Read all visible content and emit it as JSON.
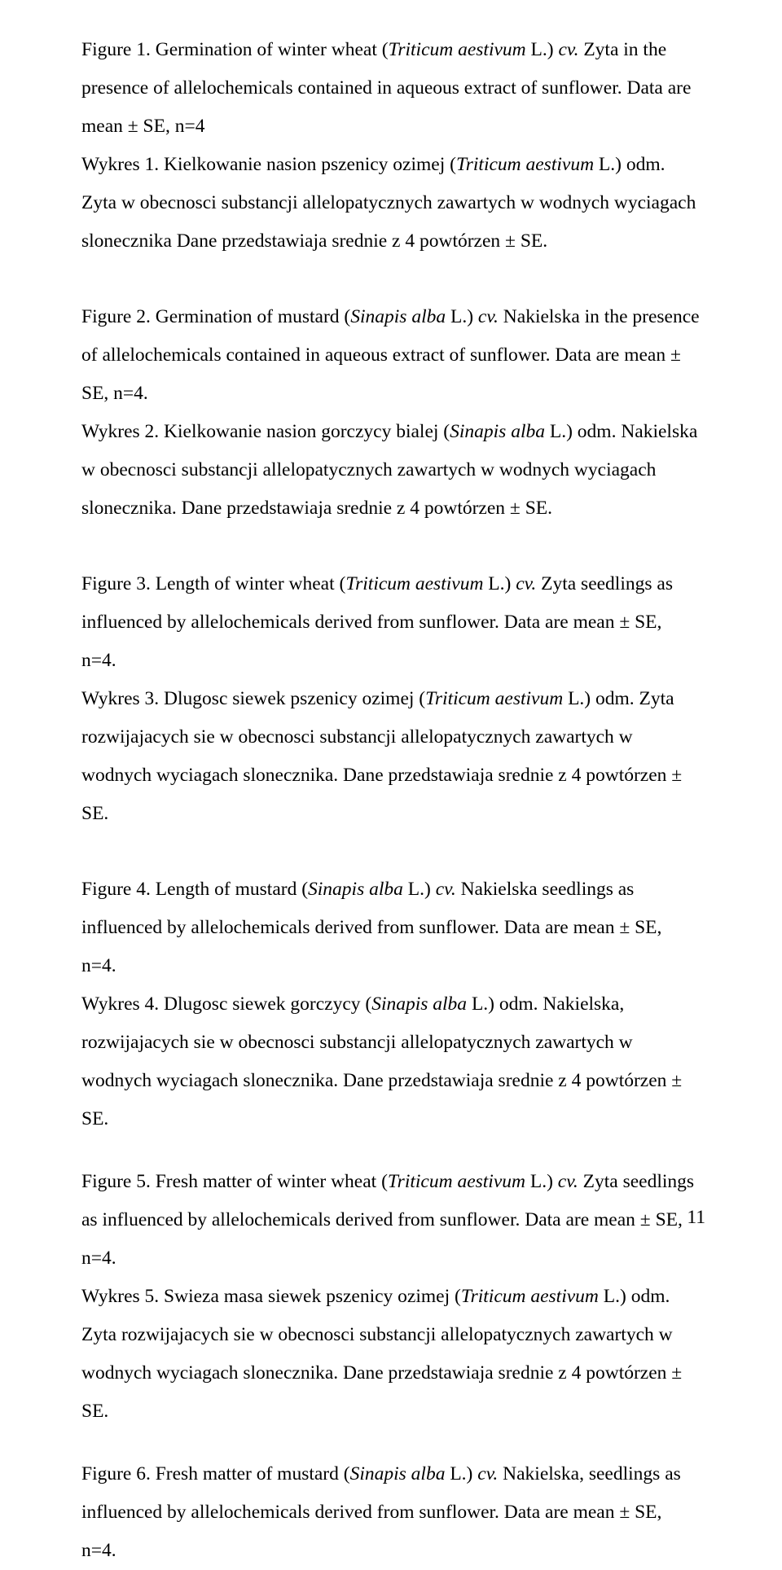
{
  "page_number": "11",
  "typography": {
    "font_family": "Times New Roman",
    "font_size_pt": 12,
    "line_spacing": 2.0,
    "color": "#000000",
    "background": "#ffffff"
  },
  "captions": [
    {
      "id": "fig1",
      "segments": [
        {
          "t": "Figure 1. Germination of winter wheat ("
        },
        {
          "t": "Triticum aestivum",
          "i": true
        },
        {
          "t": " L.) "
        },
        {
          "t": "cv.",
          "i": true
        },
        {
          "t": " Zyta in the presence of allelochemicals contained in aqueous extract of sunflower. Data are mean ± SE, n=4\nWykres 1. Kielkowanie nasion pszenicy ozimej ("
        },
        {
          "t": "Triticum aestivum",
          "i": true
        },
        {
          "t": " L.) odm. Zyta w obecnosci substancji allelopatycznych zawartych w wodnych wyciagach slonecznika Dane przedstawiaja srednie z 4 powtórzen ± SE."
        }
      ]
    },
    {
      "id": "fig2",
      "segments": [
        {
          "t": "Figure 2. Germination of mustard ("
        },
        {
          "t": "Sinapis alba",
          "i": true
        },
        {
          "t": " L.) "
        },
        {
          "t": "cv.",
          "i": true
        },
        {
          "t": " Nakielska in the presence of allelochemicals contained in aqueous extract of sunflower. Data are mean ± SE, n=4.\nWykres 2. Kielkowanie nasion gorczycy bialej ("
        },
        {
          "t": "Sinapis alba",
          "i": true
        },
        {
          "t": " L.) odm. Nakielska w obecnosci substancji allelopatycznych zawartych w wodnych wyciagach slonecznika. Dane przedstawiaja srednie z 4 powtórzen ± SE."
        }
      ]
    },
    {
      "id": "fig3",
      "segments": [
        {
          "t": "Figure 3. Length of winter wheat ("
        },
        {
          "t": "Triticum aestivum",
          "i": true
        },
        {
          "t": " L.) "
        },
        {
          "t": "cv.",
          "i": true
        },
        {
          "t": " Zyta seedlings as influenced by allelochemicals derived from sunflower. Data are mean ± SE, n=4.\nWykres 3. Dlugosc siewek pszenicy ozimej ("
        },
        {
          "t": "Triticum aestivum",
          "i": true
        },
        {
          "t": " L.) odm. Zyta rozwijajacych sie w obecnosci substancji allelopatycznych zawartych w wodnych wyciagach slonecznika. Dane przedstawiaja srednie z 4 powtórzen ± SE."
        }
      ]
    },
    {
      "id": "fig4",
      "segments": [
        {
          "t": "Figure 4. Length of  mustard ("
        },
        {
          "t": "Sinapis alba",
          "i": true
        },
        {
          "t": " L.) "
        },
        {
          "t": "cv.",
          "i": true
        },
        {
          "t": "  Nakielska seedlings as influenced by allelochemicals derived from sunflower. Data are mean ± SE, n=4.\nWykres 4.  Dlugosc siewek gorczycy ("
        },
        {
          "t": "Sinapis alba",
          "i": true
        },
        {
          "t": " L.) odm. Nakielska, rozwijajacych sie w obecnosci substancji allelopatycznych zawartych w wodnych wyciagach slonecznika. Dane przedstawiaja srednie z 4 powtórzen ± SE."
        }
      ]
    },
    {
      "id": "fig5",
      "segments": [
        {
          "t": "Figure 5. Fresh matter of winter wheat ("
        },
        {
          "t": "Triticum aestivum",
          "i": true
        },
        {
          "t": " L.) "
        },
        {
          "t": "cv.",
          "i": true
        },
        {
          "t": " Zyta seedlings as influenced by allelochemicals derived from sunflower. Data are mean ± SE, n=4.\nWykres 5. Swieza masa siewek pszenicy ozimej ("
        },
        {
          "t": "Triticum aestivum",
          "i": true
        },
        {
          "t": " L.) odm. Zyta rozwijajacych sie w obecnosci substancji allelopatycznych zawartych w wodnych wyciagach slonecznika. Dane przedstawiaja srednie z 4 powtórzen ± SE."
        }
      ]
    },
    {
      "id": "fig6",
      "segments": [
        {
          "t": "Figure 6. Fresh matter of mustard ("
        },
        {
          "t": "Sinapis alba",
          "i": true
        },
        {
          "t": " L.) "
        },
        {
          "t": "cv.",
          "i": true
        },
        {
          "t": " Nakielska, seedlings as influenced by allelochemicals derived from sunflower. Data are mean ± SE, n=4."
        }
      ]
    }
  ]
}
